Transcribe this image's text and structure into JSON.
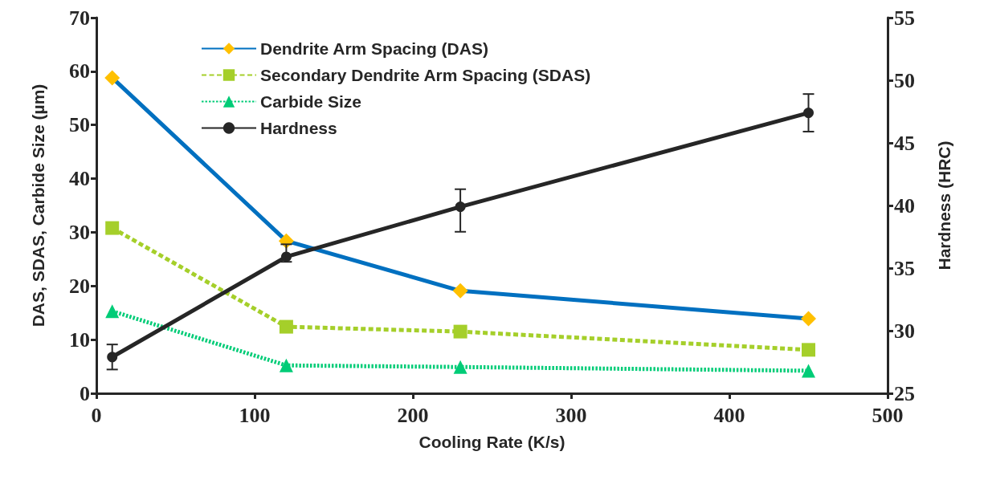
{
  "chart_data": {
    "type": "line",
    "xlabel": "Cooling Rate (K/s)",
    "ylabel": "DAS, SDAS, Carbide Size (µm)",
    "y2label": "Hardness (HRC)",
    "x": [
      10,
      120,
      230,
      450
    ],
    "xlim": [
      0,
      500
    ],
    "xticks": [
      0,
      100,
      200,
      300,
      400,
      500
    ],
    "ylim": [
      0,
      70
    ],
    "yticks": [
      0,
      10,
      20,
      30,
      40,
      50,
      60,
      70
    ],
    "y2lim": [
      25,
      55
    ],
    "y2ticks": [
      25,
      30,
      35,
      40,
      45,
      50,
      55
    ],
    "legend": "top left",
    "series": [
      {
        "name": "Dendrite Arm Spacing (DAS)",
        "color": "#0070c0",
        "colors": [
          "#ffc000",
          "#ffc000",
          "#ffc000",
          "#ffc000"
        ],
        "marker": "diamond",
        "line_style": "solid",
        "values": [
          58.8,
          28.4,
          19.1,
          13.9
        ]
      },
      {
        "name": "Secondary Dendrite Arm Spacing (SDAS)",
        "color": "#a5cf2a",
        "marker": "square",
        "line_style": "dashed",
        "values": [
          30.8,
          12.4,
          11.5,
          8.1
        ]
      },
      {
        "name": "Carbide Size",
        "color": "#00cc77",
        "marker": "triangle",
        "line_style": "dotted",
        "values": [
          15.3,
          5.2,
          4.9,
          4.2
        ]
      },
      {
        "name": "Hardness",
        "color": "#262626",
        "marker": "circle",
        "line_style": "solid",
        "axis": "y2",
        "values": [
          27.9,
          35.9,
          39.9,
          47.4
        ],
        "errors": [
          [
            26.9,
            28.9
          ],
          [
            35.5,
            36.9
          ],
          [
            37.9,
            41.3
          ],
          [
            45.9,
            48.9
          ]
        ]
      }
    ]
  }
}
